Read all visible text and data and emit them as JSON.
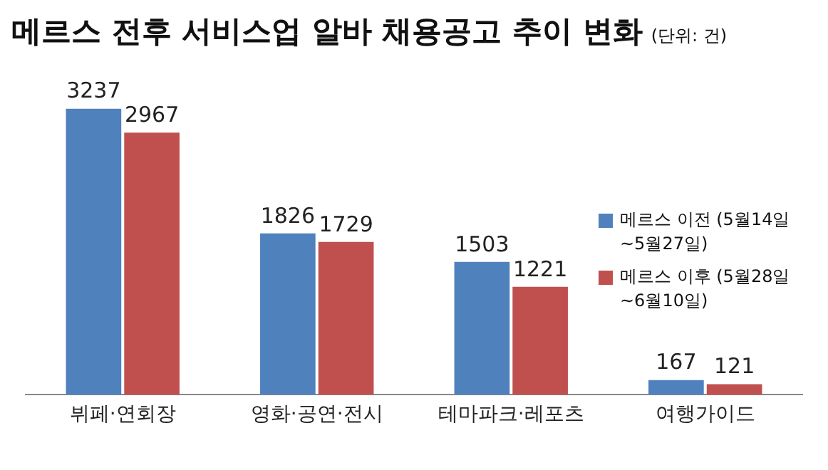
{
  "chart_data": {
    "type": "bar",
    "title": "메르스 전후 서비스업 알바 채용공고 추이 변화",
    "subtitle": "(단위: 건)",
    "categories": [
      "뷔페·연회장",
      "영화·공연·전시",
      "테마파크·레포츠",
      "여행가이드"
    ],
    "series": [
      {
        "name": "메르스 이전 (5월14일~5월27일)",
        "color": "#4f81bd",
        "values": [
          3237,
          1826,
          1503,
          167
        ]
      },
      {
        "name": "메르스 이후 (5월28일~6월10일)",
        "color": "#c0504d",
        "values": [
          2967,
          1729,
          1221,
          121
        ]
      }
    ],
    "data_labels": true,
    "grid": false,
    "legend": "right",
    "tick_labels": "x"
  }
}
